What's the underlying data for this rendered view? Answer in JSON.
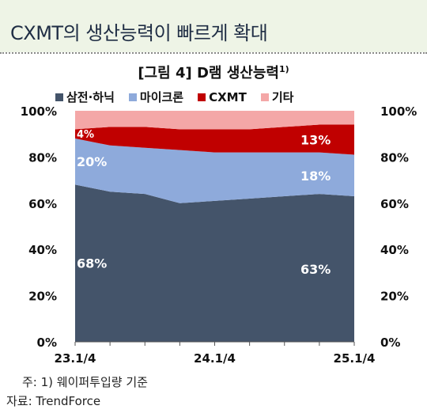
{
  "header": {
    "title": "CXMT의 생산능력이 빠르게 확대"
  },
  "chart_data": {
    "type": "area",
    "stacked": true,
    "title": "[그림 4]  D램  생산능력",
    "title_note_mark": "1)",
    "ylim": [
      0,
      100
    ],
    "y_ticks": [
      "0%",
      "20%",
      "40%",
      "60%",
      "80%",
      "100%"
    ],
    "x_ticks": [
      "23.1/4",
      "24.1/4",
      "25.1/4"
    ],
    "x": [
      "23.1/4",
      "23.2/4",
      "23.3/4",
      "23.4/4",
      "24.1/4",
      "24.2/4",
      "24.3/4",
      "24.4/4",
      "25.1/4"
    ],
    "legend_position": "top",
    "series": [
      {
        "name": "삼전·하닉",
        "color": "#44546a",
        "values": [
          68,
          65,
          64,
          60,
          61,
          62,
          63,
          64,
          63
        ]
      },
      {
        "name": "마이크론",
        "color": "#8eaadb",
        "values": [
          20,
          20,
          20,
          23,
          21,
          20,
          19,
          18,
          18
        ]
      },
      {
        "name": "CXMT",
        "color": "#c00000",
        "values": [
          4,
          8,
          9,
          9,
          10,
          10,
          11,
          12,
          13
        ]
      },
      {
        "name": "기타",
        "color": "#f4a7a7",
        "values": [
          8,
          7,
          7,
          8,
          8,
          8,
          7,
          6,
          6
        ]
      }
    ],
    "data_labels": [
      {
        "series": 0,
        "index": 0,
        "text": "68%"
      },
      {
        "series": 1,
        "index": 0,
        "text": "20%"
      },
      {
        "series": 2,
        "index": 0,
        "text": "4%"
      },
      {
        "series": 0,
        "index": 8,
        "text": "63%"
      },
      {
        "series": 1,
        "index": 8,
        "text": "18%"
      },
      {
        "series": 2,
        "index": 8,
        "text": "13%"
      }
    ]
  },
  "footnote": "주:  1)  웨이퍼투입량  기준",
  "source": "자료:  TrendForce"
}
